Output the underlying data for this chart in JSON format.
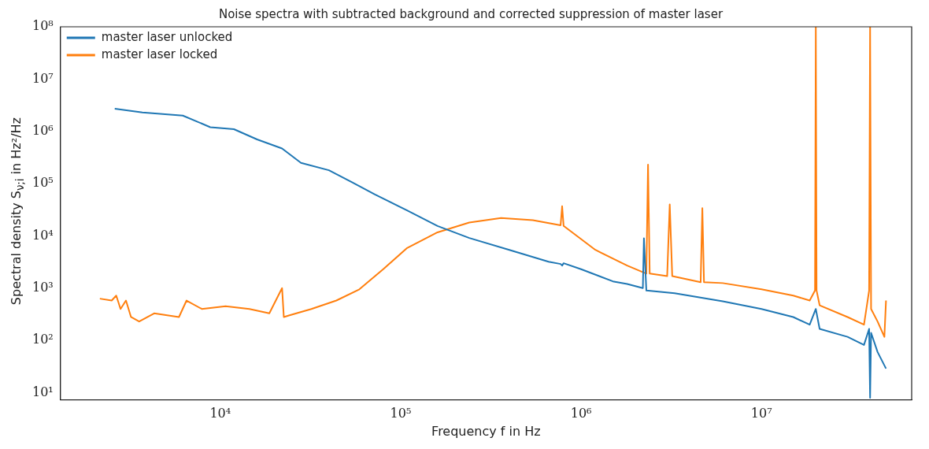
{
  "chart_data": {
    "type": "line",
    "title": "Noise spectra with subtracted background and corrected suppression of master laser",
    "xlabel": "Frequency f in Hz",
    "ylabel": "Spectral density S$_{ν;i}$ in Hz²/Hz",
    "log": "xy",
    "grid": false,
    "legend": "top left",
    "marker": "none",
    "line_style": "solid",
    "xlim": [
      1300,
      68000000
    ],
    "ylim": [
      7.3,
      100000000
    ],
    "xticks": [
      {
        "value": 10000,
        "label": "10⁴"
      },
      {
        "value": 100000,
        "label": "10⁵"
      },
      {
        "value": 1000000,
        "label": "10⁶"
      },
      {
        "value": 10000000,
        "label": "10⁷"
      }
    ],
    "yticks": [
      {
        "value": 10,
        "label": "10¹"
      },
      {
        "value": 100,
        "label": "10²"
      },
      {
        "value": 1000,
        "label": "10³"
      },
      {
        "value": 10000,
        "label": "10⁴"
      },
      {
        "value": 100000,
        "label": "10⁵"
      },
      {
        "value": 1000000,
        "label": "10⁶"
      },
      {
        "value": 10000000,
        "label": "10⁷"
      },
      {
        "value": 100000000,
        "label": "10⁸"
      }
    ],
    "series": [
      {
        "name": "master laser unlocked",
        "color": "#1f77b4",
        "x": [
          2600,
          3700,
          6200,
          8800,
          11900,
          16000,
          22000,
          28000,
          40000,
          54000,
          72000,
          108000,
          160000,
          240000,
          400000,
          660000,
          770000,
          785000,
          800000,
          1000000,
          1500000,
          1800000,
          2200000,
          2230000,
          2300000,
          3300000,
          6100000,
          10000000,
          15000000,
          18500000,
          20000000,
          21000000,
          30000000,
          37000000,
          39500000,
          40000000,
          40500000,
          44000000,
          49000000
        ],
        "values": [
          2700000,
          2300000,
          2000000,
          1200000,
          1100000,
          700000,
          470000,
          250000,
          180000,
          105000,
          62000,
          31000,
          15500,
          9100,
          5400,
          3200,
          2900,
          2700,
          3000,
          2300,
          1350,
          1200,
          1000,
          9000,
          900,
          800,
          560,
          400,
          280,
          200,
          400,
          166,
          117,
          82,
          166,
          8,
          140,
          60,
          29
        ]
      },
      {
        "name": "master laser locked",
        "color": "#ff7f0e",
        "x": [
          2150,
          2500,
          2650,
          2800,
          3000,
          3200,
          3550,
          4300,
          5900,
          6500,
          7900,
          10700,
          14500,
          18700,
          22000,
          22500,
          24000,
          32000,
          44000,
          59000,
          80000,
          108000,
          160000,
          240000,
          360000,
          540000,
          770000,
          785000,
          800000,
          1200000,
          1800000,
          2300000,
          2350000,
          2400000,
          3000000,
          3100000,
          3200000,
          4600000,
          4700000,
          4800000,
          6100000,
          10000000,
          15000000,
          18500000,
          19800000,
          20000000,
          20200000,
          21000000,
          30000000,
          37000000,
          39500000,
          40000000,
          40500000,
          44000000,
          48000000,
          49000000
        ],
        "values": [
          630,
          580,
          720,
          400,
          580,
          280,
          230,
          330,
          280,
          580,
          400,
          450,
          400,
          330,
          1000,
          280,
          300,
          400,
          580,
          950,
          2300,
          5800,
          11700,
          18000,
          22000,
          20000,
          16000,
          37000,
          15500,
          5400,
          2700,
          1900,
          230000,
          1900,
          1700,
          40000,
          1700,
          1300,
          34000,
          1300,
          1250,
          950,
          720,
          580,
          900,
          100000000,
          900,
          470,
          280,
          200,
          900,
          100000000,
          400,
          230,
          117,
          580
        ]
      }
    ]
  }
}
